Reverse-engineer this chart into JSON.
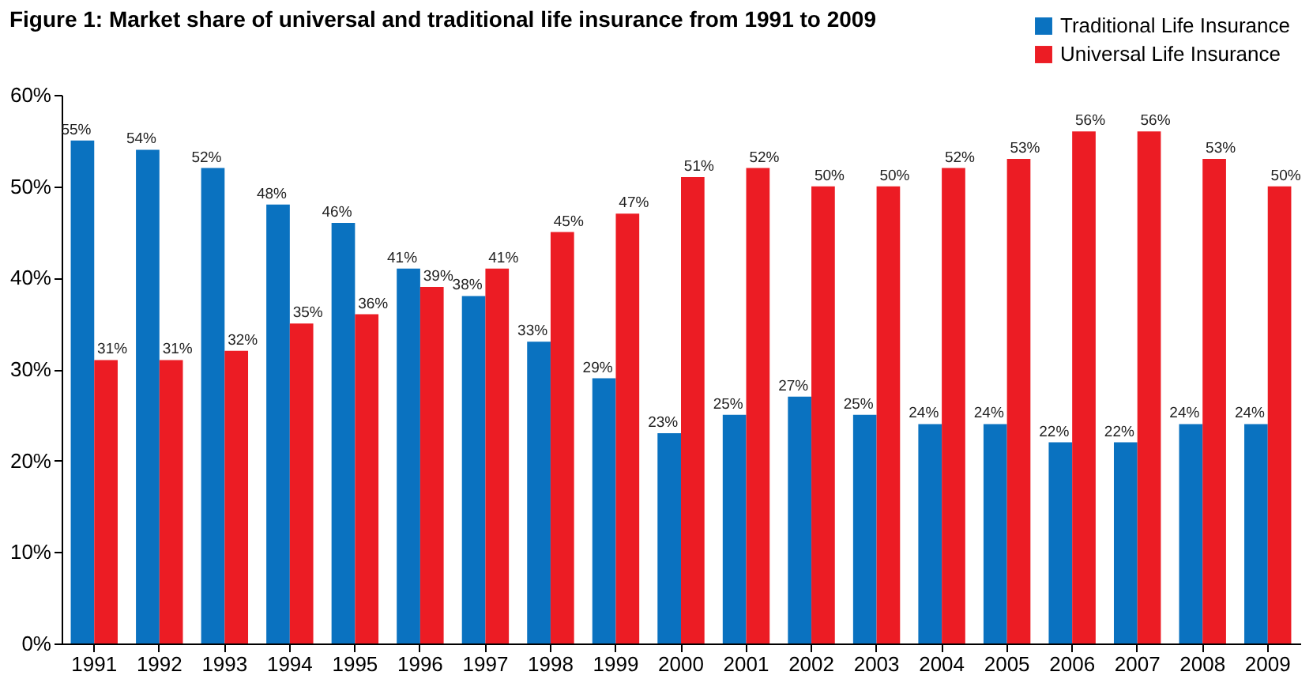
{
  "chart_data": {
    "type": "bar",
    "title": "Figure 1: Market share of universal and traditional life insurance from 1991 to 2009",
    "categories": [
      "1991",
      "1992",
      "1993",
      "1994",
      "1995",
      "1996",
      "1997",
      "1998",
      "1999",
      "2000",
      "2001",
      "2002",
      "2003",
      "2004",
      "2005",
      "2006",
      "2007",
      "2008",
      "2009"
    ],
    "series": [
      {
        "name": "Traditional Life Insurance",
        "color": "#0a72c0",
        "values": [
          55,
          54,
          52,
          48,
          46,
          41,
          38,
          33,
          29,
          23,
          25,
          27,
          25,
          24,
          24,
          22,
          22,
          24,
          24
        ],
        "value_labels": [
          "55%",
          "54%",
          "52%",
          "48%",
          "46%",
          "41%",
          "38%",
          "33%",
          "29%",
          "23%",
          "25%",
          "27%",
          "25%",
          "24%",
          "24%",
          "22%",
          "22%",
          "24%",
          "24%"
        ]
      },
      {
        "name": "Universal Life Insurance",
        "color": "#ec1c24",
        "values": [
          31,
          31,
          32,
          35,
          36,
          39,
          41,
          45,
          47,
          51,
          52,
          50,
          50,
          52,
          53,
          56,
          56,
          53,
          50
        ],
        "value_labels": [
          "31%",
          "31%",
          "32%",
          "35%",
          "36%",
          "39%",
          "41%",
          "45%",
          "47%",
          "51%",
          "52%",
          "50%",
          "50%",
          "52%",
          "53%",
          "56%",
          "56%",
          "53%",
          "50%"
        ]
      }
    ],
    "ylim": [
      0,
      60
    ],
    "yticks": [
      {
        "value": 0,
        "label": "0%"
      },
      {
        "value": 10,
        "label": "10%"
      },
      {
        "value": 20,
        "label": "20%"
      },
      {
        "value": 30,
        "label": "30%"
      },
      {
        "value": 40,
        "label": "40%"
      },
      {
        "value": 50,
        "label": "50%"
      },
      {
        "value": 60,
        "label": "60%"
      }
    ],
    "grid": false,
    "legend": "top right"
  }
}
